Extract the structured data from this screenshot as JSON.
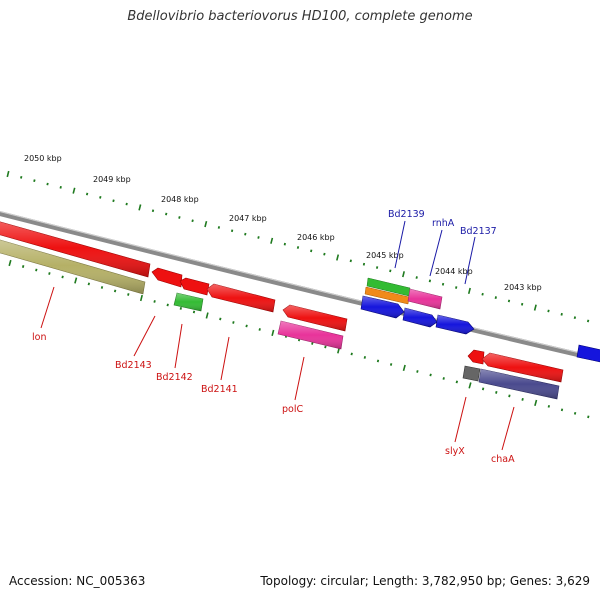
{
  "title": "Bdellovibrio bacteriovorus HD100, complete genome",
  "accession_text": "Accession: NC_005363",
  "topology_text": "Topology: circular; Length: 3,782,950 bp; Genes: 3,629",
  "colors": {
    "backbone": "#8a8a8a",
    "tick": "#1f7a1f",
    "label_forward": "#1a1aa6",
    "label_reverse": "#cc1111",
    "gene_red": "#ee1111",
    "gene_blue": "#1515dd",
    "gene_green": "#33bb33",
    "gene_pink": "#e8339a",
    "gene_orange": "#f08a1a",
    "gene_olive": "#b5b066",
    "gene_grey": "#666666",
    "gene_purple": "#4a4a8e"
  },
  "kbp_ticks": [
    "2050 kbp",
    "2049 kbp",
    "2048 kbp",
    "2047 kbp",
    "2046 kbp",
    "2045 kbp",
    "2044 kbp",
    "2043 kbp"
  ],
  "gene_labels": {
    "Bd2139": "Bd2139",
    "rnhA": "rnhA",
    "Bd2137": "Bd2137",
    "lon": "lon",
    "Bd2143": "Bd2143",
    "Bd2142": "Bd2142",
    "Bd2141": "Bd2141",
    "polC": "polC",
    "slyX": "slyX",
    "chaA": "chaA"
  }
}
